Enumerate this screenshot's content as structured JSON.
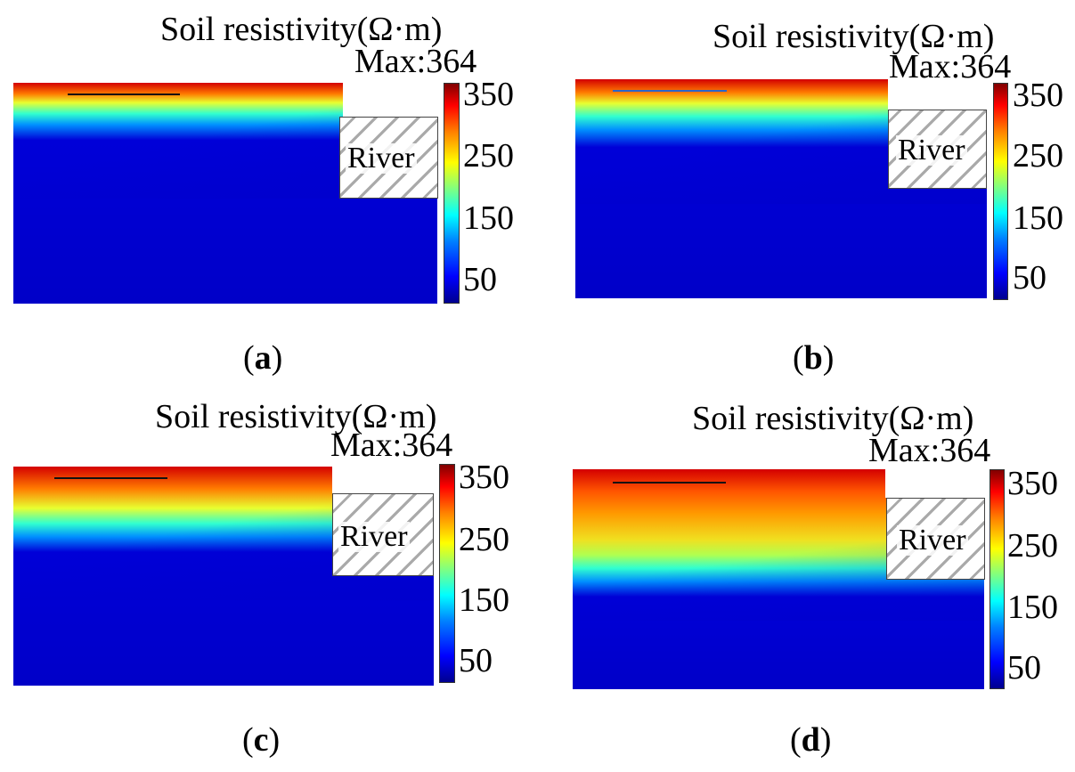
{
  "chart_data": [
    {
      "type": "heatmap",
      "panel_label": "a",
      "title": "Soil resistivity(Ω·m)",
      "max_label": "Max:364",
      "max_value": 364,
      "colorbar_ticks": [
        50,
        150,
        250,
        350
      ],
      "colormap": "jet",
      "annotation": "River",
      "surface_resistivity": 350,
      "deep_resistivity": 30
    },
    {
      "type": "heatmap",
      "panel_label": "b",
      "title": "Soil resistivity(Ω·m)",
      "max_label": "Max:364",
      "max_value": 364,
      "colorbar_ticks": [
        50,
        150,
        250,
        350
      ],
      "colormap": "jet",
      "annotation": "River",
      "surface_resistivity": 350,
      "deep_resistivity": 30
    },
    {
      "type": "heatmap",
      "panel_label": "c",
      "title": "Soil resistivity(Ω·m)",
      "max_label": "Max:364",
      "max_value": 364,
      "colorbar_ticks": [
        50,
        150,
        250,
        350
      ],
      "colormap": "jet",
      "annotation": "River",
      "surface_resistivity": 350,
      "deep_resistivity": 30
    },
    {
      "type": "heatmap",
      "panel_label": "d",
      "title": "Soil resistivity(Ω·m)",
      "max_label": "Max:364",
      "max_value": 364,
      "colorbar_ticks": [
        50,
        150,
        250,
        350
      ],
      "colormap": "jet",
      "annotation": "River",
      "surface_resistivity": 350,
      "deep_resistivity": 30
    }
  ],
  "colors": {
    "low": "#0000c8",
    "high": "#d40000",
    "hatch": "#a9a9a9"
  }
}
